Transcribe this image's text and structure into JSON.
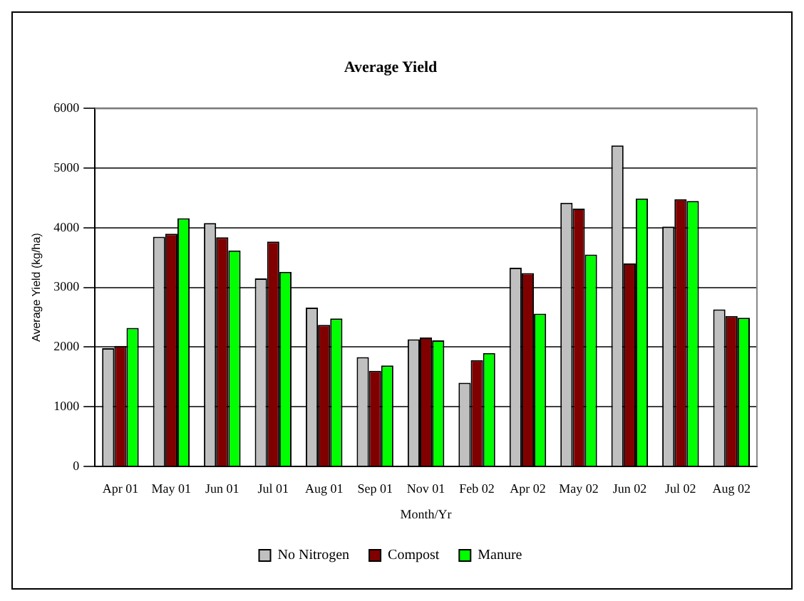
{
  "chart_data": {
    "type": "bar",
    "title": "Average Yield",
    "xlabel": "Month/Yr",
    "ylabel": "Average Yield (kg/ha)",
    "categories": [
      "Apr 01",
      "May 01",
      "Jun 01",
      "Jul 01",
      "Aug 01",
      "Sep 01",
      "Nov 01",
      "Feb 02",
      "Apr 02",
      "May 02",
      "Jun 02",
      "Jul 02",
      "Aug 02"
    ],
    "series": [
      {
        "name": "No Nitrogen",
        "color": "#c0c0c0",
        "values": [
          1980,
          3850,
          4080,
          3150,
          2660,
          1830,
          2130,
          1400,
          3330,
          4420,
          5380,
          4020,
          2630
        ]
      },
      {
        "name": "Compost",
        "color": "#800000",
        "values": [
          2020,
          3900,
          3840,
          3770,
          2370,
          1600,
          2160,
          1780,
          3240,
          4320,
          3400,
          4480,
          2520
        ]
      },
      {
        "name": "Manure",
        "color": "#00ff00",
        "values": [
          2320,
          4160,
          3620,
          3260,
          2480,
          1690,
          2110,
          1900,
          2560,
          3550,
          4490,
          4450,
          2490
        ]
      }
    ],
    "ylim": [
      0,
      6000
    ],
    "yticks": [
      0,
      1000,
      2000,
      3000,
      4000,
      5000,
      6000
    ],
    "grid": "y",
    "legend": "bottom"
  }
}
